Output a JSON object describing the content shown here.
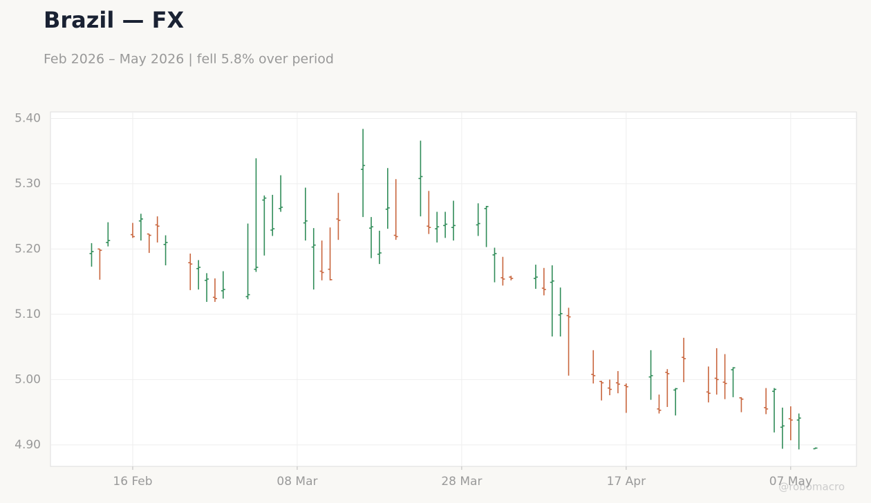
{
  "chart_data": {
    "type": "ohlc",
    "title": "Brazil — FX",
    "subtitle": "Feb 2026 – May 2026 | fell 5.8% over period",
    "watermark": "@robomacro",
    "up_color": "#2e8b57",
    "down_color": "#c8643c",
    "grid": true,
    "x": [
      "2026-02-11",
      "2026-02-12",
      "2026-02-13",
      "2026-02-16",
      "2026-02-17",
      "2026-02-18",
      "2026-02-19",
      "2026-02-20",
      "2026-02-23",
      "2026-02-24",
      "2026-02-25",
      "2026-02-26",
      "2026-02-27",
      "2026-03-02",
      "2026-03-03",
      "2026-03-04",
      "2026-03-05",
      "2026-03-06",
      "2026-03-09",
      "2026-03-10",
      "2026-03-11",
      "2026-03-12",
      "2026-03-13",
      "2026-03-16",
      "2026-03-17",
      "2026-03-18",
      "2026-03-19",
      "2026-03-20",
      "2026-03-23",
      "2026-03-24",
      "2026-03-25",
      "2026-03-26",
      "2026-03-27",
      "2026-03-30",
      "2026-03-31",
      "2026-04-01",
      "2026-04-02",
      "2026-04-03",
      "2026-04-06",
      "2026-04-07",
      "2026-04-08",
      "2026-04-09",
      "2026-04-10",
      "2026-04-13",
      "2026-04-14",
      "2026-04-15",
      "2026-04-16",
      "2026-04-17",
      "2026-04-20",
      "2026-04-21",
      "2026-04-22",
      "2026-04-23",
      "2026-04-24",
      "2026-04-27",
      "2026-04-28",
      "2026-04-29",
      "2026-04-30",
      "2026-05-01",
      "2026-05-04",
      "2026-05-05",
      "2026-05-06",
      "2026-05-07",
      "2026-05-08",
      "2026-05-10"
    ],
    "open": [
      5.193,
      5.2,
      5.21,
      5.222,
      5.243,
      5.223,
      5.237,
      5.207,
      5.179,
      5.17,
      5.152,
      5.126,
      5.136,
      5.127,
      5.169,
      5.275,
      5.229,
      5.262,
      5.24,
      5.203,
      5.166,
      5.169,
      5.246,
      5.322,
      5.232,
      5.192,
      5.261,
      5.221,
      5.308,
      5.235,
      5.231,
      5.236,
      5.233,
      5.237,
      5.262,
      5.191,
      5.156,
      5.157,
      5.155,
      5.14,
      5.149,
      5.099,
      5.098,
      5.008,
      4.997,
      4.987,
      4.995,
      4.991,
      5.004,
      4.955,
      5.011,
      4.984,
      5.034,
      4.981,
      5.002,
      4.996,
      5.015,
      4.972,
      4.957,
      4.982,
      4.927,
      4.94,
      4.938,
      4.894
    ],
    "high": [
      5.209,
      5.2,
      5.241,
      5.24,
      5.254,
      5.223,
      5.25,
      5.221,
      5.193,
      5.183,
      5.163,
      5.155,
      5.166,
      5.239,
      5.339,
      5.282,
      5.283,
      5.313,
      5.294,
      5.232,
      5.213,
      5.233,
      5.286,
      5.384,
      5.249,
      5.228,
      5.324,
      5.307,
      5.366,
      5.289,
      5.257,
      5.257,
      5.274,
      5.27,
      5.266,
      5.202,
      5.188,
      5.159,
      5.176,
      5.171,
      5.175,
      5.141,
      5.11,
      5.045,
      4.998,
      5.0,
      5.013,
      4.994,
      5.045,
      4.977,
      5.016,
      4.987,
      5.064,
      5.02,
      5.048,
      5.039,
      5.019,
      4.973,
      4.987,
      4.987,
      4.957,
      4.959,
      4.948,
      4.896
    ],
    "low": [
      5.173,
      5.153,
      5.204,
      5.217,
      5.213,
      5.194,
      5.21,
      5.175,
      5.137,
      5.138,
      5.119,
      5.119,
      5.124,
      5.123,
      5.165,
      5.19,
      5.22,
      5.257,
      5.213,
      5.138,
      5.152,
      5.152,
      5.214,
      5.249,
      5.186,
      5.177,
      5.231,
      5.214,
      5.25,
      5.223,
      5.21,
      5.217,
      5.213,
      5.22,
      5.203,
      5.149,
      5.144,
      5.152,
      5.139,
      5.129,
      5.066,
      5.066,
      5.006,
      4.994,
      4.968,
      4.976,
      4.979,
      4.949,
      4.969,
      4.948,
      4.958,
      4.945,
      4.996,
      4.965,
      4.977,
      4.97,
      4.973,
      4.95,
      4.947,
      4.919,
      4.894,
      4.907,
      4.893,
      4.894
    ],
    "close": [
      5.196,
      5.198,
      5.213,
      5.219,
      5.246,
      5.221,
      5.235,
      5.21,
      5.177,
      5.172,
      5.154,
      5.124,
      5.138,
      5.13,
      5.172,
      5.278,
      5.231,
      5.264,
      5.243,
      5.206,
      5.164,
      5.153,
      5.244,
      5.328,
      5.234,
      5.194,
      5.263,
      5.219,
      5.311,
      5.233,
      5.234,
      5.238,
      5.236,
      5.239,
      5.265,
      5.193,
      5.154,
      5.155,
      5.157,
      5.138,
      5.151,
      5.101,
      5.096,
      5.006,
      4.995,
      4.985,
      4.993,
      4.989,
      5.006,
      4.953,
      5.009,
      4.986,
      5.032,
      4.979,
      5.0,
      4.994,
      5.018,
      4.97,
      4.955,
      4.985,
      4.929,
      4.938,
      4.941,
      4.895
    ],
    "xlim": [
      "2026-02-06",
      "2026-05-15"
    ],
    "xticks": [
      {
        "value": "2026-02-16",
        "label": "16 Feb"
      },
      {
        "value": "2026-03-08",
        "label": "08 Mar"
      },
      {
        "value": "2026-03-28",
        "label": "28 Mar"
      },
      {
        "value": "2026-04-17",
        "label": "17 Apr"
      },
      {
        "value": "2026-05-07",
        "label": "07 May"
      }
    ],
    "ylim": [
      4.867,
      5.41
    ],
    "yticks": [
      {
        "value": 4.9,
        "label": "4.90"
      },
      {
        "value": 5.0,
        "label": "5.00"
      },
      {
        "value": 5.1,
        "label": "5.10"
      },
      {
        "value": 5.2,
        "label": "5.20"
      },
      {
        "value": 5.3,
        "label": "5.30"
      },
      {
        "value": 5.4,
        "label": "5.40"
      }
    ]
  }
}
